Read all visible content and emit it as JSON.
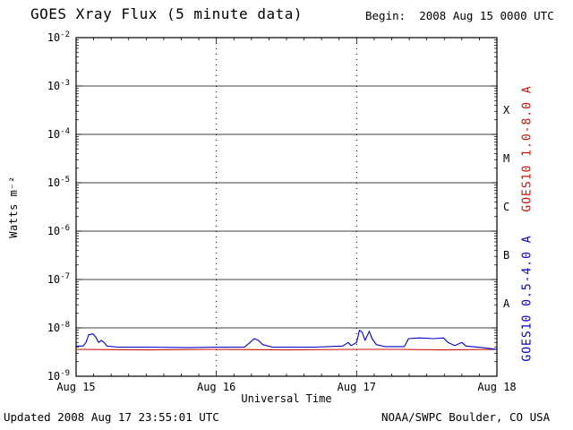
{
  "title": "GOES Xray Flux (5 minute data)",
  "begin_label": "Begin:  2008 Aug 15 0000 UTC",
  "footer": {
    "updated": "Updated 2008 Aug 17 23:55:01 UTC",
    "source": "NOAA/SWPC Boulder, CO USA"
  },
  "chart_data": {
    "type": "line",
    "title": "GOES Xray Flux (5 minute data)",
    "xlabel": "Universal Time",
    "ylabel": "Watts m⁻²",
    "x_ticks": [
      "Aug 15",
      "Aug 16",
      "Aug 17",
      "Aug 18"
    ],
    "xlim_days": [
      0,
      3
    ],
    "y_tick_exponents": [
      -2,
      -3,
      -4,
      -5,
      -6,
      -7,
      -8,
      -9
    ],
    "ylim_exp": [
      -9,
      -2
    ],
    "grid": "horizontal solid lines at each log decade; vertical dotted lines at day boundaries",
    "legend_position": "right, rotated",
    "flux_classes": [
      {
        "label": "X",
        "exp": -3.5
      },
      {
        "label": "M",
        "exp": -4.5
      },
      {
        "label": "C",
        "exp": -5.5
      },
      {
        "label": "B",
        "exp": -6.5
      },
      {
        "label": "A",
        "exp": -7.5
      }
    ],
    "series": [
      {
        "name": "GOES10 1.0-8.0 A",
        "color": "#cc1100",
        "points": [
          [
            0.0,
            3.6e-09
          ],
          [
            0.5,
            3.5e-09
          ],
          [
            1.0,
            3.6e-09
          ],
          [
            1.5,
            3.5e-09
          ],
          [
            2.0,
            3.6e-09
          ],
          [
            2.3,
            3.6e-09
          ],
          [
            2.6,
            3.5e-09
          ],
          [
            3.0,
            3.6e-09
          ]
        ]
      },
      {
        "name": "GOES10 0.5-4.0 A",
        "color": "#0000cc",
        "points": [
          [
            0.0,
            4.2e-09
          ],
          [
            0.05,
            4.2e-09
          ],
          [
            0.07,
            5e-09
          ],
          [
            0.09,
            7.2e-09
          ],
          [
            0.12,
            7.5e-09
          ],
          [
            0.14,
            6.5e-09
          ],
          [
            0.16,
            5e-09
          ],
          [
            0.18,
            5.5e-09
          ],
          [
            0.2,
            5e-09
          ],
          [
            0.22,
            4.2e-09
          ],
          [
            0.3,
            4e-09
          ],
          [
            0.5,
            4e-09
          ],
          [
            0.8,
            3.9e-09
          ],
          [
            1.0,
            4e-09
          ],
          [
            1.2,
            4e-09
          ],
          [
            1.24,
            5e-09
          ],
          [
            1.27,
            6e-09
          ],
          [
            1.3,
            5.5e-09
          ],
          [
            1.33,
            4.5e-09
          ],
          [
            1.4,
            4e-09
          ],
          [
            1.7,
            4e-09
          ],
          [
            1.9,
            4.2e-09
          ],
          [
            1.94,
            5e-09
          ],
          [
            1.96,
            4.3e-09
          ],
          [
            2.0,
            5e-09
          ],
          [
            2.02,
            9e-09
          ],
          [
            2.04,
            8e-09
          ],
          [
            2.06,
            5.5e-09
          ],
          [
            2.09,
            8.5e-09
          ],
          [
            2.11,
            6e-09
          ],
          [
            2.14,
            4.5e-09
          ],
          [
            2.2,
            4.1e-09
          ],
          [
            2.34,
            4.1e-09
          ],
          [
            2.37,
            6e-09
          ],
          [
            2.45,
            6.2e-09
          ],
          [
            2.55,
            6e-09
          ],
          [
            2.62,
            6.2e-09
          ],
          [
            2.65,
            5e-09
          ],
          [
            2.7,
            4.3e-09
          ],
          [
            2.75,
            5e-09
          ],
          [
            2.78,
            4.2e-09
          ],
          [
            2.9,
            3.9e-09
          ],
          [
            3.0,
            3.6e-09
          ]
        ]
      }
    ]
  }
}
